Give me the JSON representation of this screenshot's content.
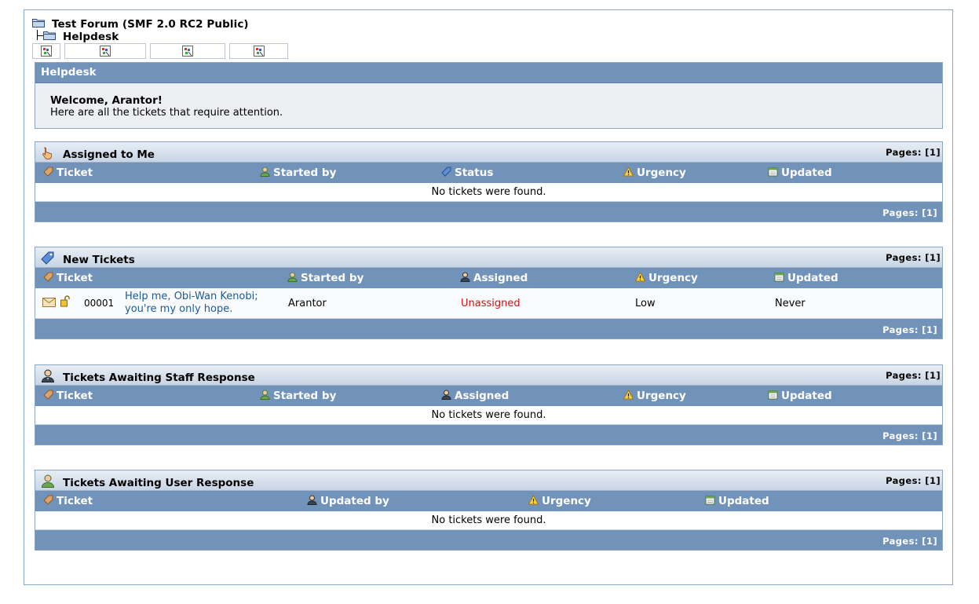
{
  "breadcrumb": {
    "forum": "Test Forum (SMF 2.0 RC2 Public)",
    "current": "Helpdesk"
  },
  "nav_tabs": [
    {
      "icon": "broken-image-icon"
    },
    {
      "icon": "broken-image-icon"
    },
    {
      "icon": "broken-image-icon"
    },
    {
      "icon": "broken-image-icon"
    }
  ],
  "helpdesk": {
    "header": "Helpdesk",
    "welcome": "Welcome, Arantor!",
    "subtitle": "Here are all the tickets that require attention."
  },
  "sections": {
    "assigned": {
      "title": "Assigned to Me",
      "icon": "hand-pointer-icon",
      "pages_top": "Pages: [1]",
      "pages_bottom": "Pages: [1]",
      "columns": [
        "Ticket",
        "Started by",
        "Status",
        "Urgency",
        "Updated"
      ],
      "empty": "No tickets were found."
    },
    "new": {
      "title": "New Tickets",
      "icon": "tag-icon",
      "pages_top": "Pages: [1]",
      "pages_bottom": "Pages: [1]",
      "columns": [
        "Ticket",
        "Started by",
        "Assigned",
        "Urgency",
        "Updated"
      ],
      "rows": [
        {
          "id": "00001",
          "subject_line1": "Help me, Obi-Wan Kenobi;",
          "subject_line2": "you're my only hope.",
          "started_by": "Arantor",
          "assigned": "Unassigned",
          "urgency": "Low",
          "updated": "Never"
        }
      ]
    },
    "staff": {
      "title": "Tickets Awaiting Staff Response",
      "icon": "staff-user-icon",
      "pages_top": "Pages: [1]",
      "pages_bottom": "Pages: [1]",
      "columns": [
        "Ticket",
        "Started by",
        "Assigned",
        "Urgency",
        "Updated"
      ],
      "empty": "No tickets were found."
    },
    "user": {
      "title": "Tickets Awaiting User Response",
      "icon": "user-icon",
      "pages_top": "Pages: [1]",
      "pages_bottom": "Pages: [1]",
      "columns": [
        "Ticket",
        "Updated by",
        "Urgency",
        "Updated"
      ],
      "empty": "No tickets were found."
    }
  },
  "colors": {
    "header_bg": "#7293b9",
    "unassigned": "#cc1212",
    "link": "#1b5a96"
  }
}
